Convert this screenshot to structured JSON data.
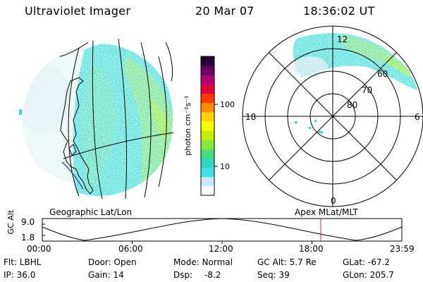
{
  "header": {
    "instrument": "Ultraviolet Imager",
    "date": "20 Mar 07",
    "time": "18:36:02 UT"
  },
  "colorbar": {
    "unit_label": "photon cm⁻²s⁻¹",
    "ticks": [
      "100",
      "10"
    ],
    "colors": [
      "#ffffff",
      "#c8e8ff",
      "#42e0e8",
      "#2fd6c0",
      "#49de7d",
      "#86ea3a",
      "#c4f000",
      "#f5ff00",
      "#ffd200",
      "#ff8c00",
      "#ff3a00",
      "#e0003a",
      "#b2006e",
      "#6b0064",
      "#240036"
    ]
  },
  "polar_plot": {
    "labels": {
      "top": "12",
      "bottom": "0",
      "left": "18",
      "right": "6"
    },
    "ring_labels": [
      "60",
      "70",
      "80"
    ]
  },
  "timeline": {
    "left_label": "Geographic Lat/Lon",
    "right_label": "Apex MLat/MLT",
    "y_axis_title": "GC Alt",
    "y_ticks": [
      "9.0",
      "1.8"
    ],
    "x_ticks": [
      "00:00",
      "06:00",
      "12:00",
      "18:00",
      "23:59"
    ],
    "marker_color": "#b03040"
  },
  "info": {
    "flt": "Flt: LBHL",
    "ip": "IP: 36.0",
    "door": "Door: Open",
    "gain": "Gain: 14",
    "mode": "Mode: Normal",
    "dsp_label": "Dsp:",
    "dsp_value": "-8.2",
    "gc_alt": "GC Alt: 5.7 Re",
    "seq": "Seq: 39",
    "glat": "GLat: -67.2",
    "glon": "GLon: 205.7"
  }
}
